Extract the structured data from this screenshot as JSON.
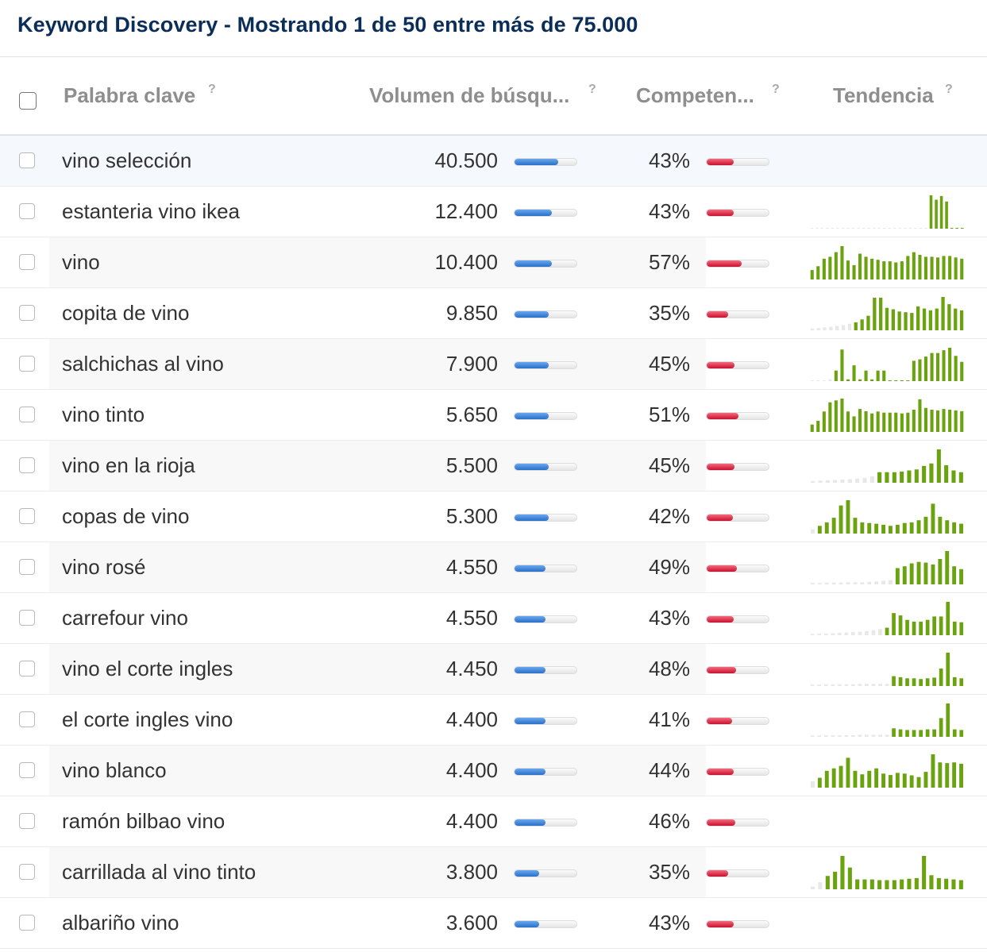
{
  "title": "Keyword Discovery - Mostrando 1 de 50 entre más de 75.000",
  "columns": {
    "keyword": "Palabra clave",
    "volume": "Volumen de búsqu...",
    "competition": "Competen...",
    "trend": "Tendencia",
    "help": "?"
  },
  "colors": {
    "title": "#0b2e59",
    "volume_bar": "#2a6fc9",
    "competition_bar": "#c8102e",
    "trend_bar": "#6aa30f"
  },
  "rows": [
    {
      "keyword": "vino selección",
      "volume": "40.500",
      "volume_level": 0.7,
      "competition": "43%",
      "competition_level": 0.43,
      "trend": []
    },
    {
      "keyword": "estanteria vino ikea",
      "volume": "12.400",
      "volume_level": 0.6,
      "competition": "43%",
      "competition_level": 0.43,
      "trend": [
        0,
        0,
        0,
        0,
        0,
        0,
        0,
        0,
        0,
        0,
        0,
        0,
        0,
        0,
        0,
        0,
        0,
        0,
        0,
        0,
        0,
        0,
        0,
        92,
        80,
        90,
        75,
        0,
        0,
        0
      ]
    },
    {
      "keyword": "vino",
      "volume": "10.400",
      "volume_level": 0.6,
      "competition": "57%",
      "competition_level": 0.57,
      "trend": [
        25,
        35,
        55,
        60,
        72,
        88,
        50,
        38,
        68,
        60,
        55,
        52,
        48,
        48,
        45,
        48,
        62,
        72,
        65,
        60,
        60,
        58,
        62,
        62,
        58,
        55
      ]
    },
    {
      "keyword": "copita de vino",
      "volume": "9.850",
      "volume_level": 0.55,
      "competition": "35%",
      "competition_level": 0.35,
      "trend": [
        5,
        6,
        8,
        10,
        12,
        14,
        18,
        22,
        30,
        40,
        90,
        90,
        62,
        58,
        52,
        50,
        48,
        66,
        60,
        55,
        60,
        92,
        72,
        60,
        55
      ]
    },
    {
      "keyword": "salchichas al vino",
      "volume": "7.900",
      "volume_level": 0.55,
      "competition": "45%",
      "competition_level": 0.45,
      "trend": [
        0,
        0,
        0,
        5,
        30,
        90,
        5,
        45,
        5,
        30,
        5,
        30,
        30,
        0,
        0,
        0,
        0,
        58,
        62,
        70,
        80,
        80,
        88,
        95,
        72,
        55
      ]
    },
    {
      "keyword": "vino tinto",
      "volume": "5.650",
      "volume_level": 0.55,
      "competition": "51%",
      "competition_level": 0.51,
      "trend": [
        20,
        30,
        55,
        80,
        85,
        90,
        55,
        42,
        62,
        56,
        50,
        55,
        52,
        52,
        52,
        50,
        52,
        60,
        88,
        65,
        60,
        58,
        62,
        60,
        58,
        56
      ]
    },
    {
      "keyword": "vino en la rioja",
      "volume": "5.500",
      "volume_level": 0.55,
      "competition": "45%",
      "competition_level": 0.45,
      "trend": [
        5,
        6,
        7,
        8,
        9,
        10,
        12,
        14,
        18,
        30,
        30,
        30,
        32,
        35,
        38,
        48,
        55,
        95,
        50,
        35,
        30
      ]
    },
    {
      "keyword": "copas de vino",
      "volume": "5.300",
      "volume_level": 0.55,
      "competition": "42%",
      "competition_level": 0.42,
      "trend": [
        12,
        22,
        32,
        45,
        80,
        95,
        45,
        32,
        30,
        28,
        25,
        22,
        25,
        30,
        32,
        38,
        48,
        85,
        48,
        38,
        32,
        28
      ]
    },
    {
      "keyword": "vino rosé",
      "volume": "4.550",
      "volume_level": 0.5,
      "competition": "49%",
      "competition_level": 0.49,
      "trend": [
        4,
        4,
        5,
        5,
        5,
        6,
        6,
        6,
        7,
        8,
        10,
        12,
        45,
        50,
        58,
        62,
        60,
        55,
        70,
        92,
        50,
        42
      ]
    },
    {
      "keyword": "carrefour vino",
      "volume": "4.550",
      "volume_level": 0.5,
      "competition": "43%",
      "competition_level": 0.43,
      "trend": [
        4,
        5,
        5,
        6,
        7,
        8,
        9,
        10,
        12,
        15,
        18,
        22,
        65,
        58,
        45,
        40,
        40,
        45,
        55,
        55,
        98,
        40,
        38
      ]
    },
    {
      "keyword": "vino el corte ingles",
      "volume": "4.450",
      "volume_level": 0.5,
      "competition": "48%",
      "competition_level": 0.48,
      "trend": [
        4,
        4,
        5,
        5,
        5,
        5,
        5,
        6,
        6,
        6,
        6,
        6,
        28,
        25,
        22,
        22,
        20,
        22,
        24,
        50,
        95,
        25,
        22
      ]
    },
    {
      "keyword": "el corte ingles vino",
      "volume": "4.400",
      "volume_level": 0.5,
      "competition": "41%",
      "competition_level": 0.41,
      "trend": [
        4,
        4,
        5,
        5,
        5,
        5,
        5,
        6,
        6,
        6,
        6,
        6,
        25,
        22,
        20,
        20,
        20,
        22,
        22,
        55,
        98,
        22,
        20
      ]
    },
    {
      "keyword": "vino blanco",
      "volume": "4.400",
      "volume_level": 0.5,
      "competition": "44%",
      "competition_level": 0.44,
      "trend": [
        18,
        28,
        48,
        55,
        62,
        85,
        48,
        38,
        48,
        55,
        40,
        36,
        42,
        40,
        35,
        30,
        45,
        95,
        72,
        70,
        72,
        68
      ]
    },
    {
      "keyword": "ramón bilbao vino",
      "volume": "4.400",
      "volume_level": 0.5,
      "competition": "46%",
      "competition_level": 0.46,
      "trend": []
    },
    {
      "keyword": "carrillada al vino tinto",
      "volume": "3.800",
      "volume_level": 0.4,
      "competition": "35%",
      "competition_level": 0.35,
      "trend": [
        8,
        20,
        38,
        50,
        95,
        62,
        28,
        28,
        28,
        26,
        26,
        26,
        28,
        30,
        32,
        95,
        40,
        32,
        30,
        28,
        26
      ]
    },
    {
      "keyword": "albariño vino",
      "volume": "3.600",
      "volume_level": 0.4,
      "competition": "43%",
      "competition_level": 0.43,
      "trend": []
    }
  ]
}
